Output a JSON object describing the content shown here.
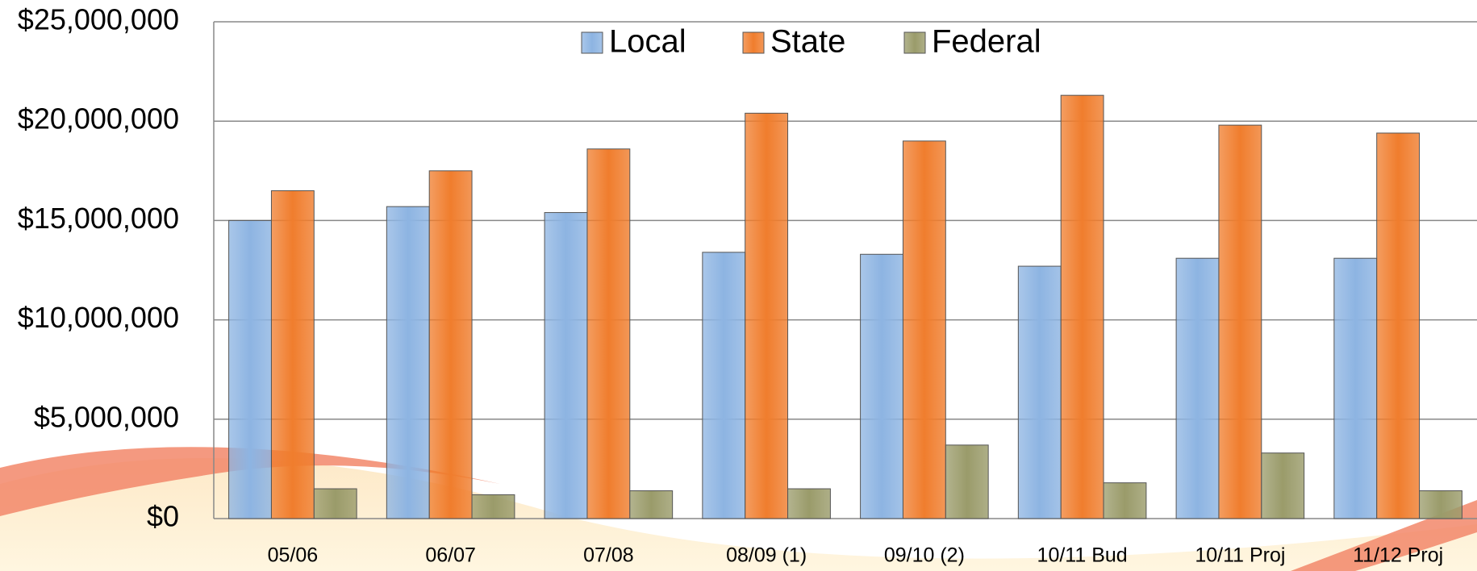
{
  "chart_data": {
    "type": "bar",
    "categories": [
      "05/06",
      "06/07",
      "07/08",
      "08/09 (1)",
      "09/10 (2)",
      "10/11 Bud",
      "10/11 Proj",
      "11/12 Proj"
    ],
    "series": [
      {
        "name": "Local",
        "color": "#8db4e2",
        "values": [
          15000000,
          15700000,
          15400000,
          13400000,
          13300000,
          12700000,
          13100000,
          13100000
        ]
      },
      {
        "name": "State",
        "color": "#f07d2d",
        "values": [
          16500000,
          17500000,
          18600000,
          20400000,
          19000000,
          21300000,
          19800000,
          19400000
        ]
      },
      {
        "name": "Federal",
        "color": "#9a9b6a",
        "values": [
          1500000,
          1200000,
          1400000,
          1500000,
          3700000,
          1800000,
          3300000,
          1400000
        ]
      }
    ],
    "ylim": [
      0,
      25000000
    ],
    "yticks": [
      {
        "value": 0,
        "label": "$0"
      },
      {
        "value": 5000000,
        "label": "$5,000,000"
      },
      {
        "value": 10000000,
        "label": "$10,000,000"
      },
      {
        "value": 15000000,
        "label": "$15,000,000"
      },
      {
        "value": 20000000,
        "label": "$20,000,000"
      },
      {
        "value": 25000000,
        "label": "$25,000,000"
      }
    ],
    "grid": true,
    "legend": "top"
  }
}
